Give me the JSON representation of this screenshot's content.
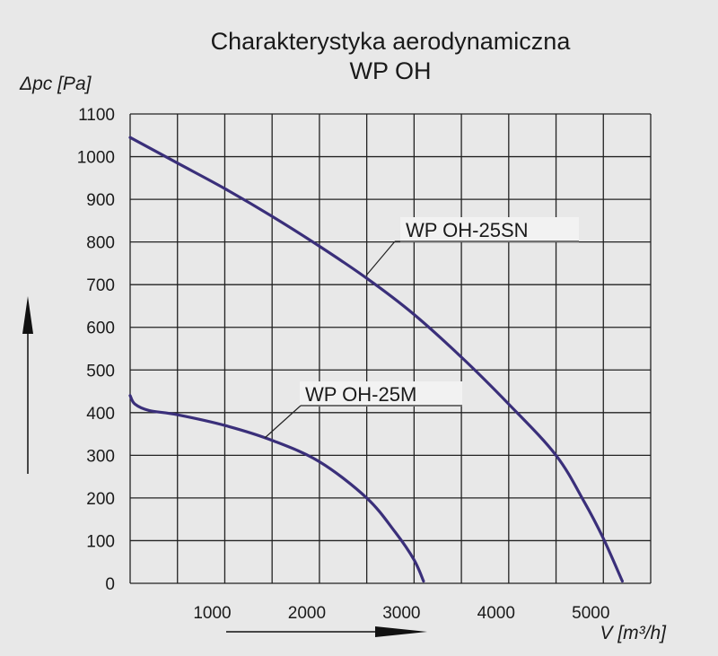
{
  "chart_data": {
    "type": "line",
    "title": "Charakterystyka aerodynamiczna",
    "subtitle": "WP OH",
    "xlabel": "V [m³/h]",
    "ylabel": "Δpc [Pa]",
    "xlim": [
      0,
      5500
    ],
    "ylim": [
      0,
      1100
    ],
    "x_ticks": [
      1000,
      2000,
      3000,
      4000,
      5000
    ],
    "y_ticks": [
      0,
      100,
      200,
      300,
      400,
      500,
      600,
      700,
      800,
      900,
      1000,
      1100
    ],
    "grid": true,
    "series": [
      {
        "name": "WP OH-25SN",
        "color": "#3a2f7a",
        "x": [
          0,
          500,
          1000,
          1500,
          2000,
          2500,
          3000,
          3500,
          4000,
          4500,
          4800,
          5000,
          5200
        ],
        "y": [
          1045,
          985,
          925,
          860,
          790,
          715,
          630,
          530,
          420,
          300,
          190,
          105,
          5
        ]
      },
      {
        "name": "WP OH-25M",
        "color": "#3a2f7a",
        "x": [
          0,
          50,
          200,
          500,
          1000,
          1500,
          2000,
          2500,
          2800,
          3000,
          3100
        ],
        "y": [
          440,
          420,
          405,
          395,
          370,
          335,
          285,
          200,
          120,
          55,
          5
        ]
      }
    ]
  }
}
